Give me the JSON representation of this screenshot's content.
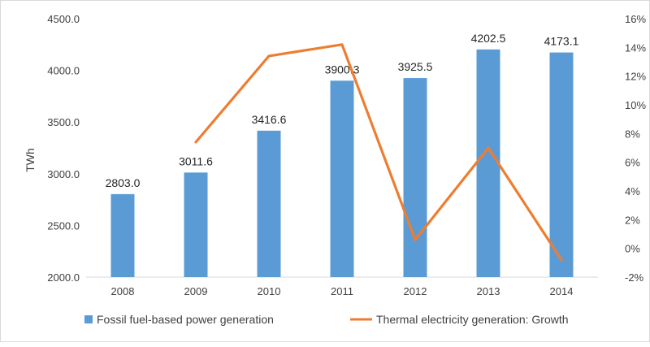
{
  "chart_data": {
    "type": "bar",
    "categories": [
      "2008",
      "2009",
      "2010",
      "2011",
      "2012",
      "2013",
      "2014"
    ],
    "series": [
      {
        "name": "Fossil fuel-based power generation",
        "type": "bar",
        "axis": "left",
        "color": "#5b9bd5",
        "values": [
          2803.0,
          3011.6,
          3416.6,
          3900.3,
          3925.5,
          4202.5,
          4173.1
        ],
        "labels": [
          "2803.0",
          "3011.6",
          "3416.6",
          "3900.3",
          "3925.5",
          "4202.5",
          "4173.1"
        ]
      },
      {
        "name": "Thermal electricity generation: Growth",
        "type": "line",
        "axis": "right",
        "color": "#ed7d31",
        "values": [
          null,
          0.074,
          0.134,
          0.142,
          0.006,
          0.07,
          -0.008
        ]
      }
    ],
    "ylabel": "TWh",
    "ylim": [
      2000,
      4500
    ],
    "yticks": [
      "2000.0",
      "2500.0",
      "3000.0",
      "3500.0",
      "4000.0",
      "4500.0"
    ],
    "y2lim": [
      -0.02,
      0.16
    ],
    "y2ticks": [
      "-2%",
      "0%",
      "2%",
      "4%",
      "6%",
      "8%",
      "10%",
      "12%",
      "14%",
      "16%"
    ],
    "grid": false,
    "legend_position": "bottom"
  }
}
